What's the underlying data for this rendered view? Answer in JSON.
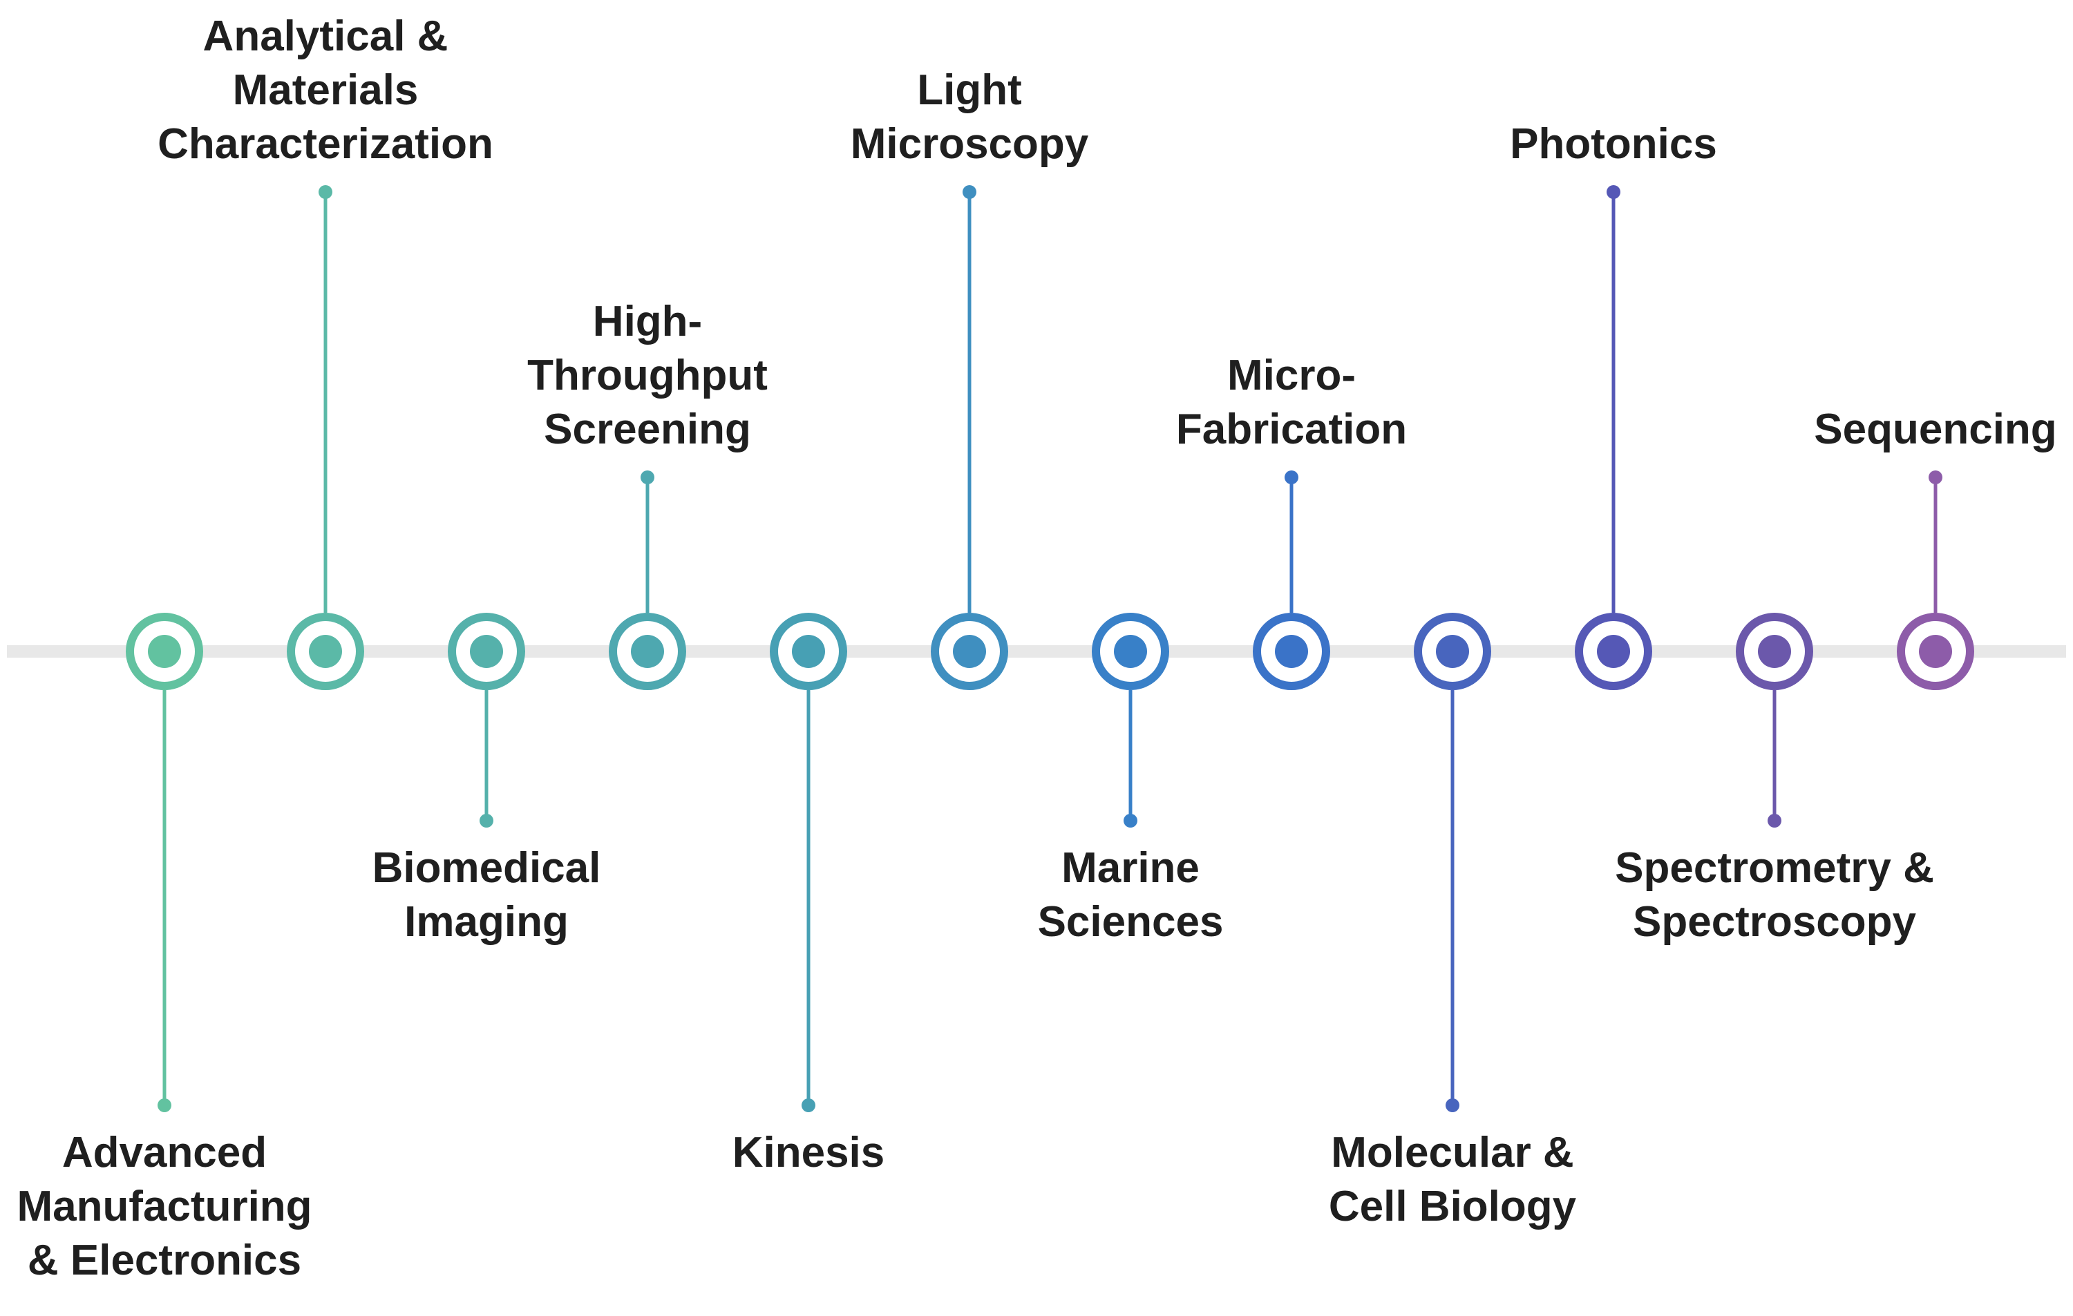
{
  "timeline": {
    "axis_color": "#e8e8e8",
    "nodes": [
      {
        "name": "Advanced\nManufacturing\n& Electronics",
        "position": "below",
        "stem": "long",
        "color": "#62c2a0"
      },
      {
        "name": "Analytical &\nMaterials\nCharacterization",
        "position": "above",
        "stem": "long",
        "color": "#5bb9a7"
      },
      {
        "name": "Biomedical\nImaging",
        "position": "below",
        "stem": "short",
        "color": "#55b1ab"
      },
      {
        "name": "High-\nThroughput\nScreening",
        "position": "above",
        "stem": "short",
        "color": "#4ea8b0"
      },
      {
        "name": "Kinesis",
        "position": "below",
        "stem": "long",
        "color": "#47a0b4"
      },
      {
        "name": "Light\nMicroscopy",
        "position": "above",
        "stem": "long",
        "color": "#3f8fc0"
      },
      {
        "name": "Marine\nSciences",
        "position": "below",
        "stem": "short",
        "color": "#3880c8"
      },
      {
        "name": "Micro-\nFabrication",
        "position": "above",
        "stem": "short",
        "color": "#3a73c8"
      },
      {
        "name": "Molecular &\nCell Biology",
        "position": "below",
        "stem": "long",
        "color": "#4865be"
      },
      {
        "name": "Photonics",
        "position": "above",
        "stem": "long",
        "color": "#5558b6"
      },
      {
        "name": "Spectrometry &\nSpectroscopy",
        "position": "below",
        "stem": "short",
        "color": "#6b58ab"
      },
      {
        "name": "Sequencing",
        "position": "above",
        "stem": "short",
        "color": "#8d5ca9"
      }
    ]
  }
}
